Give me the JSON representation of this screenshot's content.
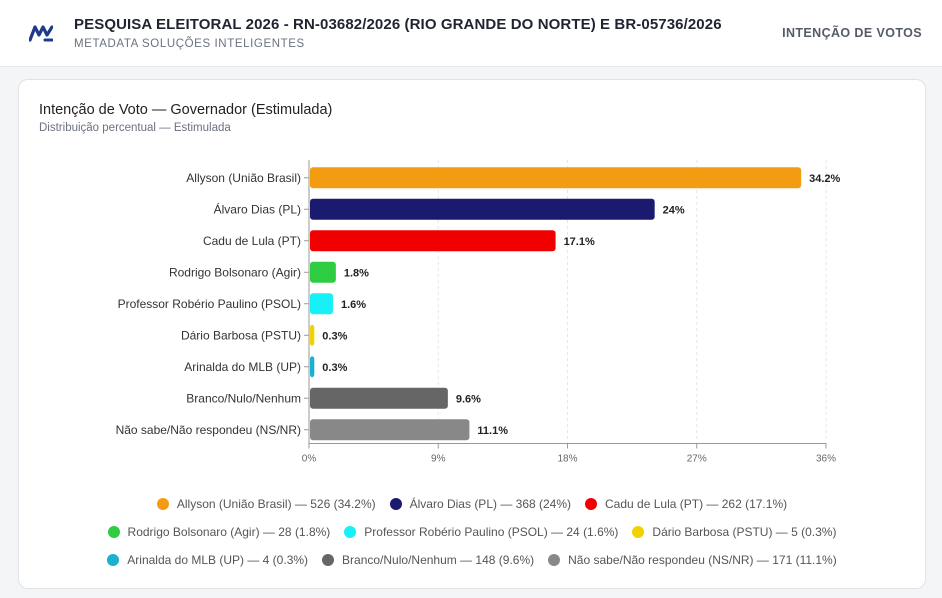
{
  "header": {
    "title": "PESQUISA ELEITORAL 2026 - RN-03682/2026 (RIO GRANDE DO NORTE) E BR-05736/2026",
    "subtitle": "METADATA SOLUÇÕES INTELIGENTES",
    "right_label": "INTENÇÃO DE VOTOS",
    "logo_icon": "metadata-logo-icon"
  },
  "card": {
    "title": "Intenção de Voto — Governador (Estimulada)",
    "subtitle": "Distribuição percentual — Estimulada"
  },
  "chart_data": {
    "type": "bar",
    "orientation": "horizontal",
    "categories": [
      "Allyson (União Brasil)",
      "Álvaro Dias (PL)",
      "Cadu de Lula (PT)",
      "Rodrigo Bolsonaro (Agir)",
      "Professor Robério Paulino (PSOL)",
      "Dário Barbosa (PSTU)",
      "Arinalda do MLB (UP)",
      "Branco/Nulo/Nenhum",
      "Não sabe/Não respondeu (NS/NR)"
    ],
    "values": [
      34.2,
      24,
      17.1,
      1.8,
      1.6,
      0.3,
      0.3,
      9.6,
      11.1
    ],
    "value_labels": [
      "34.2%",
      "24%",
      "17.1%",
      "1.8%",
      "1.6%",
      "0.3%",
      "0.3%",
      "9.6%",
      "11.1%"
    ],
    "colors": [
      "#f39c12",
      "#1a1a6e",
      "#f10000",
      "#2ecc40",
      "#18f0f8",
      "#f1d200",
      "#1ab0d0",
      "#666666",
      "#888888"
    ],
    "xlim": [
      0,
      36
    ],
    "xticks": [
      0,
      9,
      18,
      27,
      36
    ],
    "xtick_labels": [
      "0%",
      "9%",
      "18%",
      "27%",
      "36%"
    ],
    "grid": true,
    "legend_position": "bottom",
    "legend": [
      [
        "Allyson (União Brasil) — 526 (34.2%)",
        "Álvaro Dias (PL) — 368 (24%)",
        "Cadu de Lula (PT) — 262 (17.1%)"
      ],
      [
        "Rodrigo Bolsonaro (Agir) — 28 (1.8%)",
        "Professor Robério Paulino (PSOL) — 24 (1.6%)",
        "Dário Barbosa (PSTU) — 5 (0.3%)"
      ],
      [
        "Arinalda do MLB (UP) — 4 (0.3%)",
        "Branco/Nulo/Nenhum — 148 (9.6%)",
        "Não sabe/Não respondeu (NS/NR) — 171 (11.1%)"
      ]
    ]
  }
}
